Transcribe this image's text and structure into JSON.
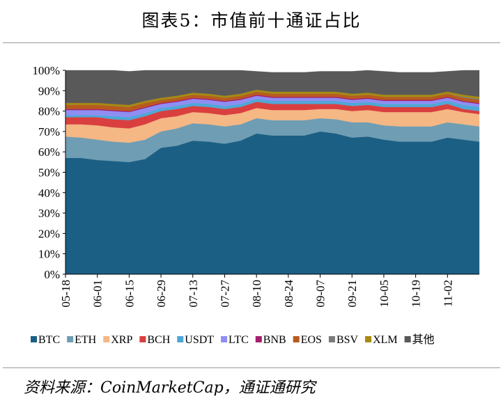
{
  "title": "图表5：市值前十通证占比",
  "source": "资料来源：CoinMarketCap，通证通研究",
  "chart_data": {
    "type": "area",
    "stacked": true,
    "xlabel": "",
    "ylabel": "",
    "ylim": [
      0,
      100
    ],
    "ytick_labels": [
      "0%",
      "10%",
      "20%",
      "30%",
      "40%",
      "50%",
      "60%",
      "70%",
      "80%",
      "90%",
      "100%"
    ],
    "xtick_labels": [
      "05-18",
      "06-01",
      "06-15",
      "06-29",
      "07-13",
      "07-27",
      "08-10",
      "08-24",
      "09-07",
      "09-21",
      "10-05",
      "10-19",
      "11-02"
    ],
    "x": [
      "05-18",
      "05-25",
      "06-01",
      "06-08",
      "06-15",
      "06-22",
      "06-29",
      "07-06",
      "07-13",
      "07-20",
      "07-27",
      "08-03",
      "08-10",
      "08-17",
      "08-24",
      "08-31",
      "09-07",
      "09-14",
      "09-21",
      "09-28",
      "10-05",
      "10-12",
      "10-19",
      "10-26",
      "11-02",
      "11-09",
      "11-16"
    ],
    "legend_position": "bottom",
    "series": [
      {
        "name": "BTC",
        "color": "#1c5f84",
        "values": [
          57,
          57,
          56,
          55.5,
          55,
          56.5,
          62,
          63,
          65.5,
          65,
          64,
          65.5,
          69,
          68,
          68,
          68,
          70,
          69,
          67,
          67.5,
          66,
          65,
          65,
          65,
          67,
          66,
          65
        ]
      },
      {
        "name": "ETH",
        "color": "#6f9db3",
        "values": [
          10.5,
          10,
          10,
          9.5,
          9.5,
          9.5,
          8,
          8.5,
          8.5,
          8.5,
          8.5,
          8,
          7.5,
          7.5,
          7.5,
          7.5,
          6.5,
          7,
          7.5,
          7,
          7,
          7.5,
          7.5,
          7.5,
          7.5,
          7.5,
          7.5
        ]
      },
      {
        "name": "XRP",
        "color": "#f5b784",
        "values": [
          6,
          6.5,
          7,
          7,
          7,
          7.5,
          6.5,
          6,
          5.5,
          5.5,
          5.5,
          5.5,
          5,
          5,
          5,
          5,
          4.5,
          5,
          5.5,
          6,
          6.5,
          7,
          7,
          7,
          6.5,
          6,
          6
        ]
      },
      {
        "name": "BCH",
        "color": "#d93f3f",
        "values": [
          3.5,
          3.5,
          4,
          4,
          4,
          4,
          3.5,
          3.5,
          3,
          3,
          3,
          3,
          3,
          3,
          3,
          3,
          2.5,
          2.5,
          2.5,
          2.5,
          2.5,
          2.5,
          2.5,
          2.5,
          2.5,
          1.5,
          1.5
        ]
      },
      {
        "name": "USDT",
        "color": "#4fa7d6",
        "values": [
          1,
          1,
          1,
          1.5,
          1.5,
          1.5,
          1.5,
          1.5,
          1.5,
          1.5,
          1.5,
          1.5,
          1.5,
          1.5,
          1.5,
          1.5,
          1.5,
          1.5,
          1.5,
          1.5,
          1.5,
          1.5,
          1.5,
          1.5,
          1.5,
          2,
          2
        ]
      },
      {
        "name": "LTC",
        "color": "#8f8ef3",
        "values": [
          2.5,
          2.5,
          2.5,
          2.5,
          2.5,
          2.5,
          2,
          2,
          2,
          2,
          2,
          2,
          1.5,
          1.5,
          1.5,
          1.5,
          1.5,
          1.5,
          1.5,
          1.5,
          1.5,
          1.5,
          1.5,
          1.5,
          1.5,
          1.5,
          1.5
        ]
      },
      {
        "name": "BNB",
        "color": "#a51e6f",
        "values": [
          0.5,
          0.5,
          0.5,
          0.5,
          0.5,
          0.5,
          0.5,
          0.5,
          0.5,
          0.5,
          0.5,
          0.5,
          0.5,
          0.5,
          0.5,
          0.5,
          0.5,
          0.5,
          0.5,
          0.5,
          0.5,
          0.5,
          0.5,
          0.5,
          0.5,
          0.5,
          0.5
        ]
      },
      {
        "name": "EOS",
        "color": "#b85a1e",
        "values": [
          2,
          2,
          2,
          2,
          2,
          2,
          1.5,
          1.5,
          1.5,
          1.5,
          1.5,
          1.5,
          1.5,
          1.5,
          1.5,
          1.5,
          1.5,
          1.5,
          1.5,
          1.5,
          1.5,
          1.5,
          1.5,
          1.5,
          1.5,
          1.5,
          1.5
        ]
      },
      {
        "name": "BSV",
        "color": "#7b7b7b",
        "values": [
          0,
          0,
          0,
          0,
          0,
          0,
          0,
          0,
          0,
          0,
          0,
          0,
          0,
          0,
          0,
          0,
          0,
          0,
          0,
          0,
          0,
          0,
          0,
          0,
          0,
          0.5,
          0.5
        ]
      },
      {
        "name": "XLM",
        "color": "#a88a10",
        "values": [
          1,
          1,
          1,
          1,
          1,
          1,
          1,
          1,
          1,
          1,
          1,
          1,
          1,
          1,
          1,
          1,
          1,
          1,
          1,
          1,
          1,
          1,
          1,
          1,
          1,
          1,
          1
        ]
      },
      {
        "name": "其他",
        "color": "#595959",
        "values": [
          16,
          16,
          16,
          16.5,
          16.5,
          15,
          13.5,
          12.5,
          11,
          11.5,
          12.5,
          11.5,
          9,
          9.5,
          9.5,
          9.5,
          10,
          10,
          11,
          11,
          11.5,
          11,
          11,
          11,
          10,
          12,
          13
        ]
      }
    ]
  }
}
